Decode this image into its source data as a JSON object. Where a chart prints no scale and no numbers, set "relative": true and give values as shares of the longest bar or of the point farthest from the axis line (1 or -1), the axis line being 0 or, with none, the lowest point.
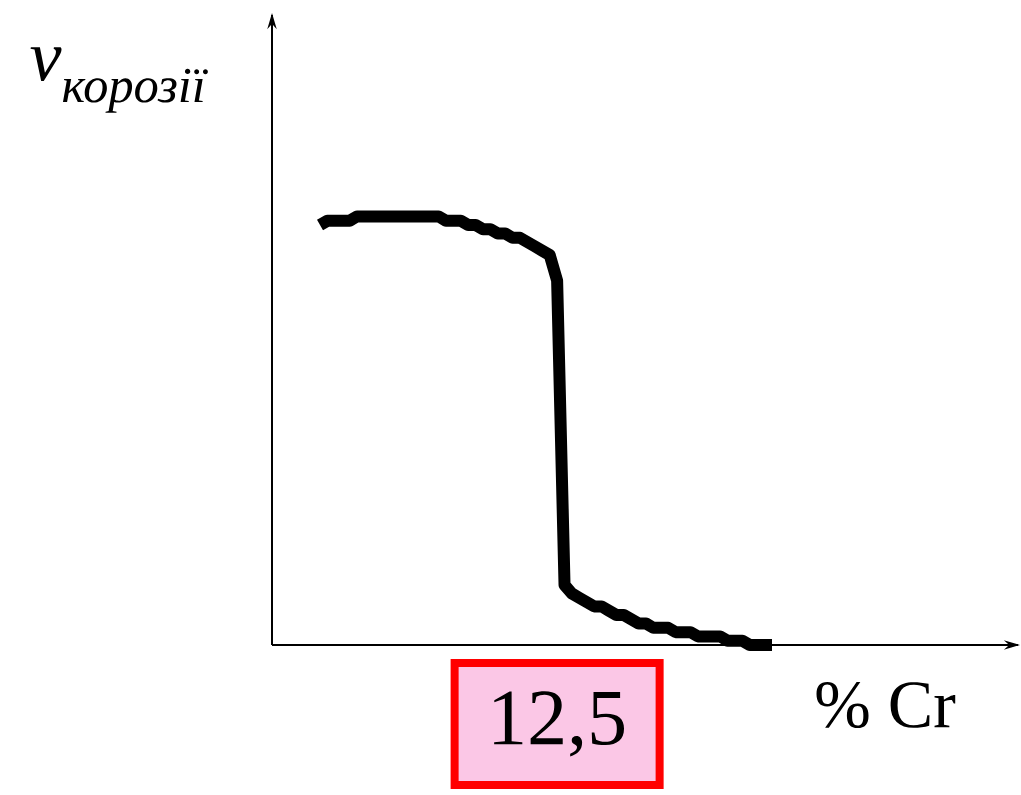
{
  "chart_data": {
    "type": "line",
    "relative": true,
    "xlabel": "% Cr",
    "ylabel": "v$_{корозії}$",
    "annotations": [
      "12,5"
    ],
    "categories": [
      null,
      null,
      null,
      null,
      null,
      null,
      null,
      null,
      null,
      null,
      null,
      null,
      null,
      null,
      null,
      null,
      null,
      null,
      null,
      null,
      null,
      null,
      null,
      null,
      null,
      null,
      null,
      null,
      null,
      null,
      null,
      null,
      null,
      null,
      null,
      null,
      null,
      null,
      null,
      null,
      null,
      null,
      null,
      null,
      null,
      null,
      null,
      null,
      null,
      null,
      null,
      null,
      null,
      null,
      null,
      null,
      null,
      null,
      null,
      null,
      null,
      null
    ],
    "series": [
      {
        "color": "#000000",
        "values": [
          0.98,
          0.99,
          0.99,
          0.99,
          0.99,
          1.0,
          1.0,
          1.0,
          1.0,
          1.0,
          1.0,
          1.0,
          1.0,
          1.0,
          1.0,
          1.0,
          1.0,
          0.99,
          0.99,
          0.99,
          0.98,
          0.98,
          0.97,
          0.97,
          0.96,
          0.96,
          0.95,
          0.95,
          0.94,
          0.93,
          0.92,
          0.91,
          0.85,
          0.14,
          0.12,
          0.11,
          0.1,
          0.09,
          0.09,
          0.08,
          0.07,
          0.07,
          0.06,
          0.05,
          0.05,
          0.04,
          0.04,
          0.04,
          0.03,
          0.03,
          0.03,
          0.02,
          0.02,
          0.02,
          0.02,
          0.01,
          0.01,
          0.01,
          0.0,
          0.0,
          0.0,
          0.0
        ]
      }
    ]
  }
}
